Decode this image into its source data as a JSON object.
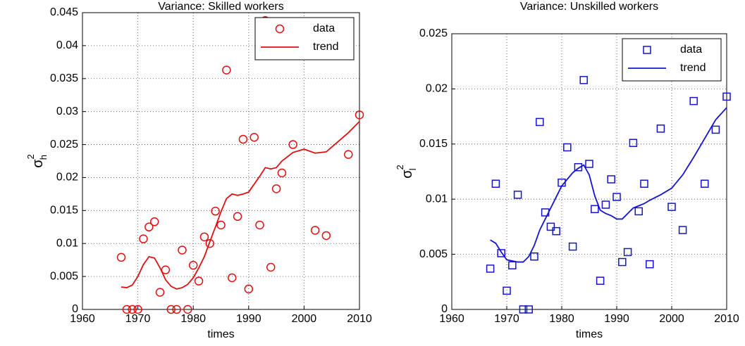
{
  "chart_data": [
    {
      "type": "scatter-line",
      "title": "Variance: Skilled workers",
      "xlabel": "times",
      "ylabel": {
        "symbol": "σ",
        "sub": "h",
        "sup": "2"
      },
      "xlim": [
        1960,
        2010
      ],
      "xticks": [
        1960,
        1970,
        1980,
        1990,
        2000,
        2010
      ],
      "ylim": [
        0,
        0.045
      ],
      "yticks": [
        0,
        0.005,
        0.01,
        0.015,
        0.02,
        0.025,
        0.03,
        0.035,
        0.04,
        0.045
      ],
      "grid": true,
      "legend": "upper right",
      "series": [
        {
          "name": "data",
          "color": "#e01010",
          "marker": "circle",
          "x": [
            1967,
            1968,
            1969,
            1970,
            1971,
            1972,
            1973,
            1974,
            1975,
            1976,
            1977,
            1978,
            1979,
            1980,
            1981,
            1982,
            1983,
            1984,
            1985,
            1986,
            1987,
            1988,
            1989,
            1990,
            1991,
            1992,
            1993,
            1994,
            1995,
            1996,
            1998,
            2002,
            2004,
            2008,
            2010
          ],
          "values": [
            0.0079,
            0,
            0,
            0,
            0.0107,
            0.0125,
            0.0133,
            0.0026,
            0.006,
            0,
            0,
            0.009,
            0,
            0.0067,
            0.0043,
            0.011,
            0.01,
            0.0149,
            0.0128,
            0.0363,
            0.0048,
            0.0141,
            0.0258,
            0.0031,
            0.0261,
            0.0128,
            0.0438,
            0.0064,
            0.0183,
            0.0207,
            0.025,
            0.012,
            0.0112,
            0.0235,
            0.0295
          ]
        },
        {
          "name": "trend",
          "color": "#e01010",
          "marker": "line",
          "x": [
            1967,
            1968,
            1969,
            1970,
            1971,
            1972,
            1973,
            1974,
            1975,
            1976,
            1977,
            1978,
            1979,
            1980,
            1981,
            1982,
            1983,
            1984,
            1985,
            1986,
            1987,
            1988,
            1989,
            1990,
            1991,
            1992,
            1993,
            1994,
            1995,
            1996,
            1998,
            2000,
            2002,
            2004,
            2008,
            2010
          ],
          "values": [
            0.0034,
            0.0033,
            0.0037,
            0.005,
            0.0068,
            0.008,
            0.0078,
            0.0063,
            0.0045,
            0.0035,
            0.0031,
            0.0033,
            0.0038,
            0.0048,
            0.0063,
            0.008,
            0.0103,
            0.0125,
            0.0148,
            0.0168,
            0.0175,
            0.0173,
            0.0175,
            0.0178,
            0.019,
            0.0202,
            0.0215,
            0.0213,
            0.0215,
            0.0225,
            0.0238,
            0.0243,
            0.0237,
            0.0239,
            0.0268,
            0.0285
          ]
        }
      ]
    },
    {
      "type": "scatter-line",
      "title": "Variance: Unskilled workers",
      "xlabel": "times",
      "ylabel": {
        "symbol": "σ",
        "sub": "l",
        "sup": "2"
      },
      "xlim": [
        1960,
        2010
      ],
      "xticks": [
        1960,
        1970,
        1980,
        1990,
        2000,
        2010
      ],
      "ylim": [
        0,
        0.025
      ],
      "yticks": [
        0,
        0.005,
        0.01,
        0.015,
        0.02,
        0.025
      ],
      "grid": true,
      "legend": "upper right",
      "series": [
        {
          "name": "data",
          "color": "#1414d0",
          "marker": "square",
          "x": [
            1967,
            1968,
            1969,
            1970,
            1971,
            1972,
            1973,
            1974,
            1975,
            1976,
            1977,
            1978,
            1979,
            1980,
            1981,
            1982,
            1983,
            1984,
            1985,
            1986,
            1987,
            1988,
            1989,
            1990,
            1991,
            1992,
            1993,
            1994,
            1995,
            1996,
            1998,
            2000,
            2002,
            2004,
            2006,
            2008,
            2010
          ],
          "values": [
            0.0037,
            0.0114,
            0.0051,
            0.0017,
            0.004,
            0.0104,
            0,
            0,
            0.0048,
            0.017,
            0.0088,
            0.0075,
            0.0071,
            0.0115,
            0.0147,
            0.0057,
            0.0129,
            0.0208,
            0.0132,
            0.0091,
            0.0026,
            0.0095,
            0.0118,
            0.0102,
            0.0043,
            0.0052,
            0.0151,
            0.0089,
            0.0114,
            0.0041,
            0.0164,
            0.0093,
            0.0072,
            0.0189,
            0.0114,
            0.0163,
            0.0193
          ]
        },
        {
          "name": "trend",
          "color": "#1414d0",
          "marker": "line",
          "x": [
            1967,
            1968,
            1969,
            1970,
            1971,
            1972,
            1973,
            1974,
            1975,
            1976,
            1977,
            1978,
            1979,
            1980,
            1981,
            1982,
            1983,
            1984,
            1985,
            1986,
            1987,
            1988,
            1989,
            1990,
            1991,
            1992,
            1993,
            1994,
            1995,
            1996,
            1998,
            2000,
            2002,
            2004,
            2006,
            2008,
            2010
          ],
          "values": [
            0.0063,
            0.006,
            0.0052,
            0.0045,
            0.0044,
            0.0043,
            0.0043,
            0.0048,
            0.0058,
            0.0072,
            0.0082,
            0.0092,
            0.0102,
            0.0112,
            0.0118,
            0.0124,
            0.0128,
            0.0131,
            0.0122,
            0.0103,
            0.009,
            0.0087,
            0.0085,
            0.0082,
            0.0082,
            0.0087,
            0.0092,
            0.0094,
            0.0096,
            0.0099,
            0.0104,
            0.011,
            0.0122,
            0.0138,
            0.0155,
            0.0172,
            0.0183
          ]
        }
      ]
    }
  ]
}
